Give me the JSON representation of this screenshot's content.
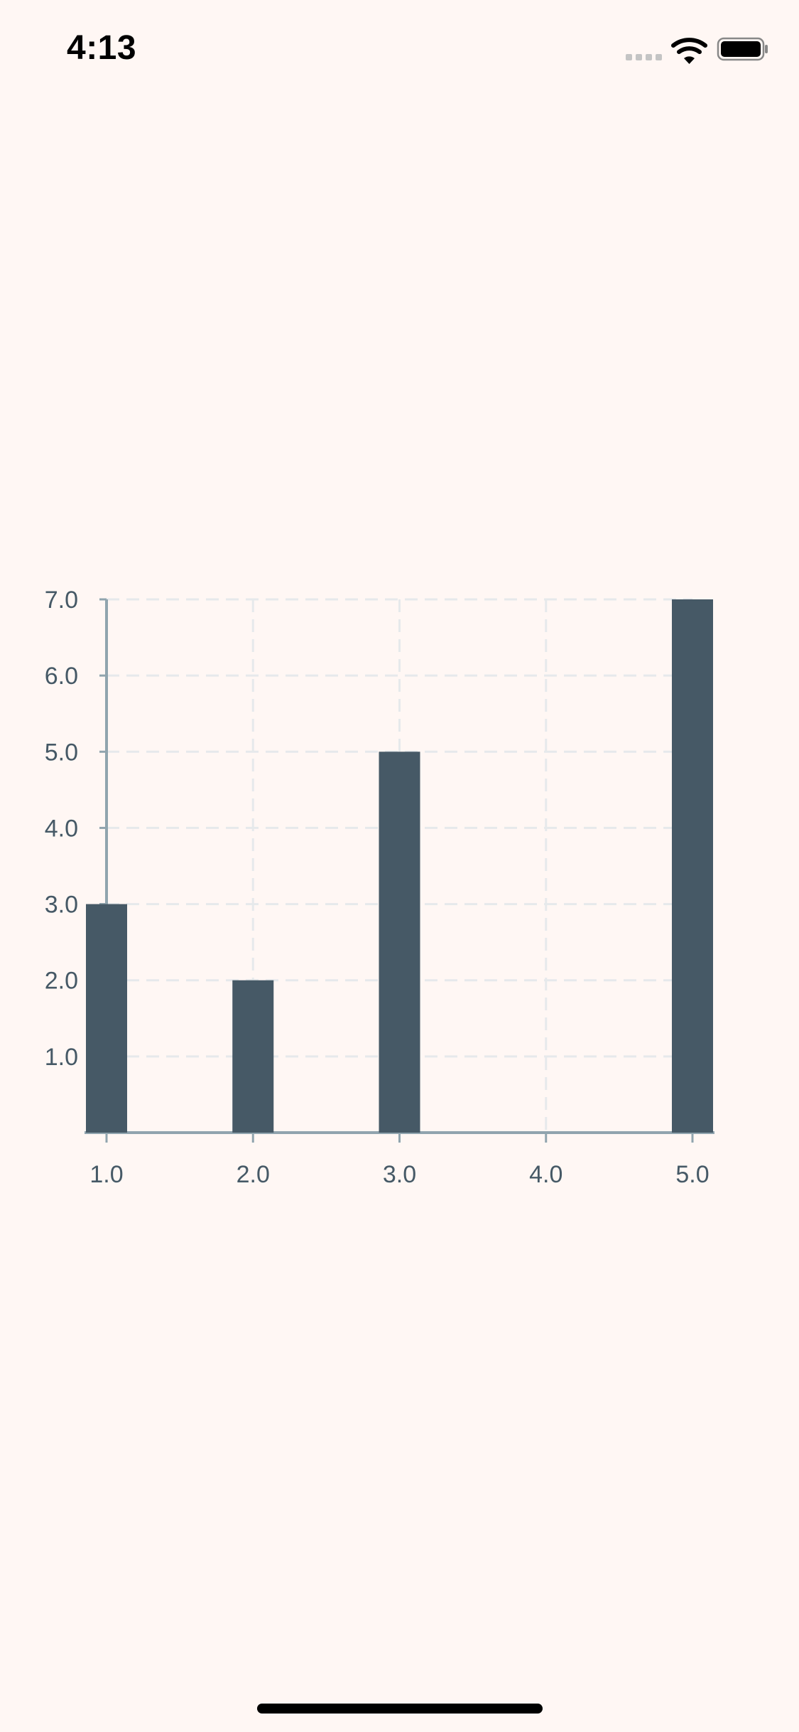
{
  "status_bar": {
    "time": "4:13",
    "icons": [
      "cellular-signal-icon",
      "wifi-icon",
      "battery-icon"
    ]
  },
  "colors": {
    "background": "#FFF7F4",
    "bar": "#465966",
    "axis": "#90A4AE",
    "grid": "#E6E9EB",
    "tick_label": "#465966"
  },
  "chart_data": {
    "type": "bar",
    "x": [
      1.0,
      2.0,
      3.0,
      5.0
    ],
    "values": [
      3.0,
      2.0,
      5.0,
      7.0
    ],
    "x_ticks": [
      "1.0",
      "2.0",
      "3.0",
      "4.0",
      "5.0"
    ],
    "y_ticks": [
      "1.0",
      "2.0",
      "3.0",
      "4.0",
      "5.0",
      "6.0",
      "7.0"
    ],
    "xlim": [
      1,
      5
    ],
    "ylim": [
      0,
      7
    ],
    "grid": true,
    "title": "",
    "xlabel": "",
    "ylabel": ""
  }
}
